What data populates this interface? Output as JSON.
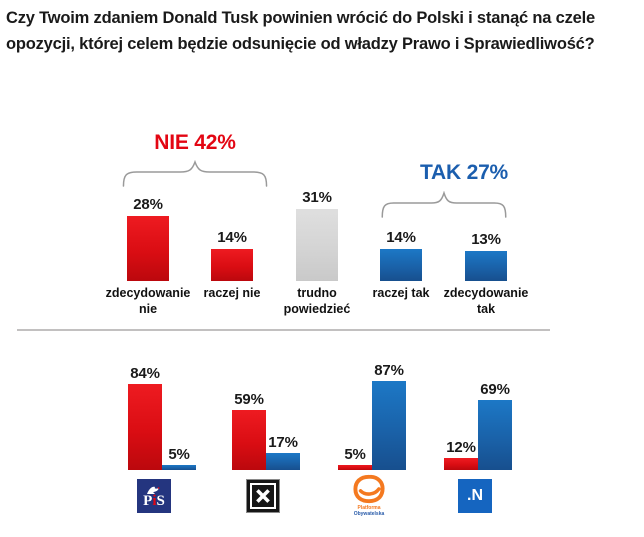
{
  "question": {
    "line1": "Czy Twoim zdaniem Donald Tusk powinien wrócić do Polski i stanąć na czele",
    "line2": "opozycji, której celem będzie odsunięcie od władzy Prawo i Sprawiedliwość?"
  },
  "colors": {
    "nie_red": "#E30613",
    "tak_blue": "#1B5EAE",
    "bar_red": "#DA0D13",
    "bar_blue": "#1A62A9",
    "bar_gray": "#D6D6D6",
    "brace_gray": "#9A9A9A"
  },
  "logos": {
    "pis": {
      "left": "P",
      "i": "i",
      "right": "S"
    },
    "po": {
      "line1": "Platforma",
      "line2": "Obywatelska"
    },
    "n": ".N"
  },
  "chart_data": [
    {
      "type": "bar",
      "categories": [
        "zdecydowanie nie",
        "raczej nie",
        "trudno powiedzieć",
        "raczej tak",
        "zdecydowanie tak"
      ],
      "values": [
        28,
        14,
        31,
        14,
        13
      ],
      "unit": "%",
      "bar_colors": [
        "#DA0D13",
        "#DA0D13",
        "#D6D6D6",
        "#1A62A9",
        "#1A62A9"
      ],
      "value_labels": true,
      "grid": false,
      "ylim": [
        0,
        35
      ],
      "annotations": [
        {
          "label": "NIE 42%",
          "value": 42,
          "color": "#E30613",
          "spans_categories": [
            "zdecydowanie nie",
            "raczej nie"
          ]
        },
        {
          "label": "TAK 27%",
          "value": 27,
          "color": "#1B5EAE",
          "spans_categories": [
            "raczej tak",
            "zdecydowanie tak"
          ]
        }
      ]
    },
    {
      "type": "bar",
      "categories": [
        "PiS",
        "Kukiz'15",
        "Platforma Obywatelska",
        ".N"
      ],
      "series": [
        {
          "name": "nie",
          "color": "#DA0D13",
          "values": [
            84,
            59,
            5,
            12
          ]
        },
        {
          "name": "tak",
          "color": "#1A62A9",
          "values": [
            5,
            17,
            87,
            69
          ]
        }
      ],
      "unit": "%",
      "value_labels": true,
      "grid": false,
      "ylim": [
        0,
        100
      ],
      "legend": "party logos under each pair"
    }
  ]
}
